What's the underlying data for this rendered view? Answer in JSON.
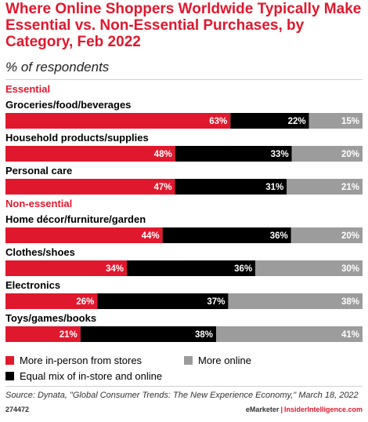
{
  "chart_data": {
    "type": "bar",
    "orientation": "horizontal-stacked-100",
    "title": "Where Online Shoppers Worldwide Typically Make Essential vs. Non-Essential Purchases, by Category, Feb 2022",
    "subtitle": "% of respondents",
    "value_suffix": "%",
    "groups": [
      {
        "name": "Essential",
        "categories": [
          "Groceries/food/beverages",
          "Household products/supplies",
          "Personal care"
        ],
        "series_values": [
          [
            63,
            22,
            15
          ],
          [
            48,
            33,
            20
          ],
          [
            47,
            31,
            21
          ]
        ]
      },
      {
        "name": "Non-essential",
        "categories": [
          "Home décor/furniture/garden",
          "Clothes/shoes",
          "Electronics",
          "Toys/games/books"
        ],
        "series_values": [
          [
            44,
            36,
            20
          ],
          [
            34,
            36,
            30
          ],
          [
            26,
            37,
            38
          ],
          [
            21,
            38,
            41
          ]
        ]
      }
    ],
    "series": [
      {
        "name": "More in-person from stores",
        "color": "#e0182d"
      },
      {
        "name": "Equal mix of in-store and online",
        "color": "#000000"
      },
      {
        "name": "More online",
        "color": "#9c9c9c"
      }
    ],
    "group_label_color": "#e0182d",
    "legend_position": "bottom"
  },
  "source": "Source: Dynata, \"Global Consumer Trends: The New Experience Economy,\" March 18, 2022",
  "footer": {
    "chart_id": "274472",
    "brand": "eMarketer",
    "separator": "|",
    "site": "InsiderIntelligence.com"
  }
}
